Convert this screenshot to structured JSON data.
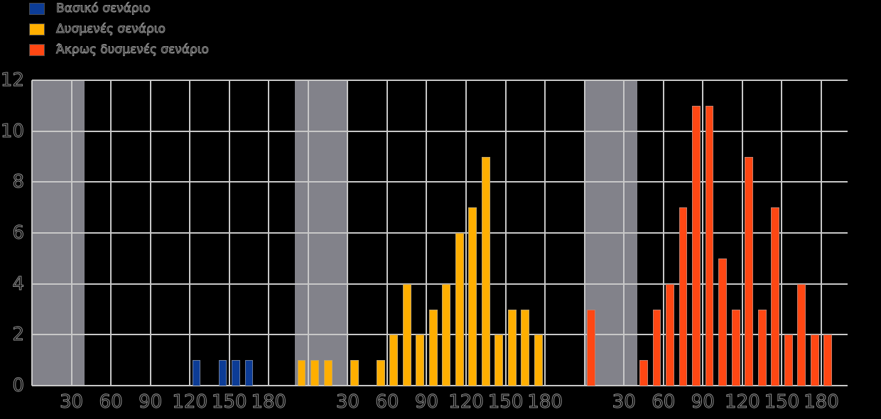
{
  "chart_data": {
    "type": "bar",
    "title": "",
    "xlabel": "",
    "ylabel": "",
    "ylim": [
      0,
      12
    ],
    "y_ticks": [
      0,
      2,
      4,
      6,
      8,
      10,
      12
    ],
    "grid": true,
    "legend_position": "upper-left",
    "x_axis": {
      "range_units": [
        0,
        620
      ],
      "gridline_step": 30,
      "grid_max": 600,
      "panel_offsets": [
        0,
        210,
        420
      ],
      "panel_tick_labels": [
        "30",
        "60",
        "90",
        "120",
        "150",
        "180"
      ]
    },
    "shaded_bands": [
      [
        0,
        40
      ],
      [
        200,
        240
      ],
      [
        420,
        460
      ]
    ],
    "bin_width": 10,
    "series": [
      {
        "name": "Βασικό σενάριο",
        "color": "#0C3C96",
        "bin_centers": [
          125,
          145,
          155,
          165
        ],
        "counts": [
          1,
          1,
          1,
          1
        ]
      },
      {
        "name": "Δυσμενές σενάριο",
        "color": "#FFAF00",
        "bin_centers": [
          -5,
          5,
          15,
          35,
          55,
          65,
          75,
          85,
          95,
          105,
          115,
          125,
          135,
          145,
          155,
          165,
          175
        ],
        "counts": [
          1,
          1,
          1,
          1,
          1,
          2,
          4,
          2,
          3,
          4,
          6,
          7,
          9,
          2,
          3,
          3,
          2
        ]
      },
      {
        "name": "Άκρως δυσμενές σενάριο",
        "color": "#FF4713",
        "bin_centers": [
          5,
          45,
          55,
          65,
          75,
          85,
          95,
          105,
          115,
          125,
          135,
          145,
          155,
          165,
          175,
          185
        ],
        "counts": [
          3,
          1,
          3,
          4,
          7,
          11,
          11,
          5,
          3,
          9,
          3,
          7,
          2,
          4,
          2,
          2
        ]
      }
    ],
    "colors": {
      "background": "#000000",
      "band": "#82828A",
      "gridline": "#C8C8C8",
      "text_outline": "#969696"
    }
  }
}
